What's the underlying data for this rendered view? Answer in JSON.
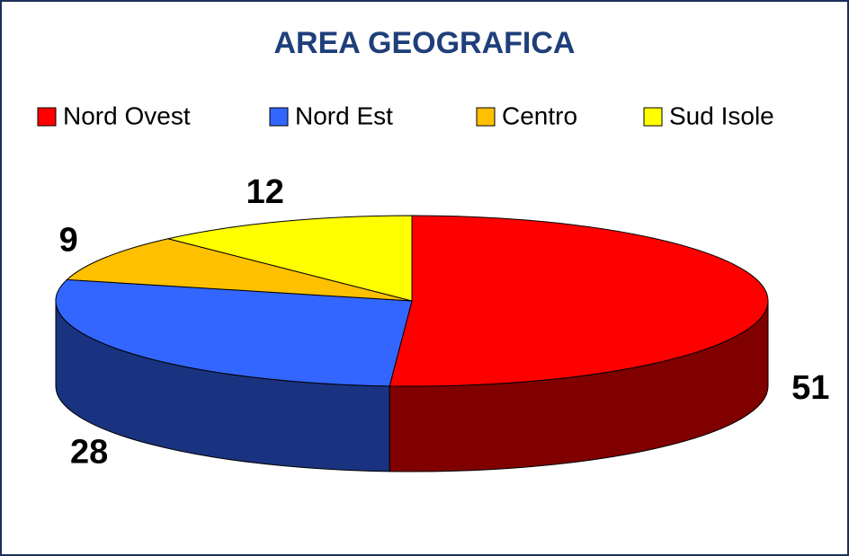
{
  "chart_data": {
    "type": "pie3d",
    "title": "AREA GEOGRAFICA",
    "categories": [
      "Nord Ovest",
      "Nord Est",
      "Centro",
      "Sud Isole"
    ],
    "values": [
      51,
      28,
      9,
      12
    ],
    "colors": [
      "#ff0000",
      "#3366ff",
      "#ffc000",
      "#ffff00"
    ],
    "legend": "top"
  }
}
